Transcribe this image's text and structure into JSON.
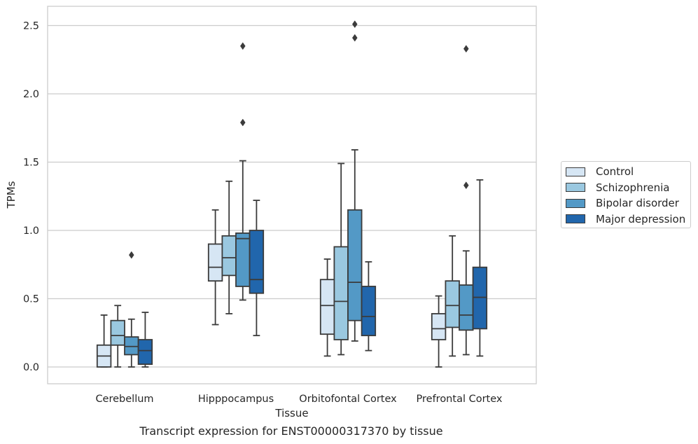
{
  "chart_data": {
    "type": "box",
    "title": "",
    "xlabel": "Tissue",
    "ylabel": "TPMs",
    "caption": "Transcript expression for ENST00000317370 by tissue",
    "ylim": [
      -0.12,
      2.64
    ],
    "yticks": [
      "0.0",
      "0.5",
      "1.0",
      "1.5",
      "2.0",
      "2.5"
    ],
    "ytick_values": [
      0.0,
      0.5,
      1.0,
      1.5,
      2.0,
      2.5
    ],
    "grid": true,
    "legend_position": "right",
    "categories": [
      "Cerebellum",
      "Hipppocampus",
      "Orbitofontal Cortex",
      "Prefrontal Cortex"
    ],
    "series": [
      {
        "name": "Control",
        "color": "#d6e6f4",
        "boxes": [
          {
            "min": 0.0,
            "q1": 0.0,
            "median": 0.08,
            "q3": 0.16,
            "max": 0.38,
            "outliers": []
          },
          {
            "min": 0.31,
            "q1": 0.63,
            "median": 0.73,
            "q3": 0.9,
            "max": 1.15,
            "outliers": []
          },
          {
            "min": 0.08,
            "q1": 0.24,
            "median": 0.45,
            "q3": 0.64,
            "max": 0.79,
            "outliers": []
          },
          {
            "min": 0.0,
            "q1": 0.2,
            "median": 0.28,
            "q3": 0.39,
            "max": 0.52,
            "outliers": []
          }
        ]
      },
      {
        "name": "Schizophrenia",
        "color": "#9ac8e0",
        "boxes": [
          {
            "min": 0.0,
            "q1": 0.16,
            "median": 0.23,
            "q3": 0.34,
            "max": 0.45,
            "outliers": []
          },
          {
            "min": 0.39,
            "q1": 0.67,
            "median": 0.8,
            "q3": 0.96,
            "max": 1.36,
            "outliers": []
          },
          {
            "min": 0.09,
            "q1": 0.2,
            "median": 0.48,
            "q3": 0.88,
            "max": 1.49,
            "outliers": []
          },
          {
            "min": 0.08,
            "q1": 0.29,
            "median": 0.45,
            "q3": 0.63,
            "max": 0.96,
            "outliers": []
          }
        ]
      },
      {
        "name": "Bipolar disorder",
        "color": "#5399c6",
        "boxes": [
          {
            "min": 0.0,
            "q1": 0.09,
            "median": 0.15,
            "q3": 0.22,
            "max": 0.35,
            "outliers": [
              0.82
            ]
          },
          {
            "min": 0.49,
            "q1": 0.59,
            "median": 0.94,
            "q3": 0.98,
            "max": 1.51,
            "outliers": [
              1.79,
              2.35
            ]
          },
          {
            "min": 0.19,
            "q1": 0.34,
            "median": 0.62,
            "q3": 1.15,
            "max": 1.59,
            "outliers": [
              2.41,
              2.51
            ]
          },
          {
            "min": 0.09,
            "q1": 0.27,
            "median": 0.38,
            "q3": 0.6,
            "max": 0.85,
            "outliers": [
              1.33,
              2.33
            ]
          }
        ]
      },
      {
        "name": "Major depression",
        "color": "#2166ac",
        "boxes": [
          {
            "min": 0.0,
            "q1": 0.02,
            "median": 0.12,
            "q3": 0.2,
            "max": 0.4,
            "outliers": []
          },
          {
            "min": 0.23,
            "q1": 0.54,
            "median": 0.64,
            "q3": 1.0,
            "max": 1.22,
            "outliers": []
          },
          {
            "min": 0.12,
            "q1": 0.23,
            "median": 0.37,
            "q3": 0.59,
            "max": 0.77,
            "outliers": []
          },
          {
            "min": 0.08,
            "q1": 0.28,
            "median": 0.51,
            "q3": 0.73,
            "max": 1.37,
            "outliers": []
          }
        ]
      }
    ]
  }
}
